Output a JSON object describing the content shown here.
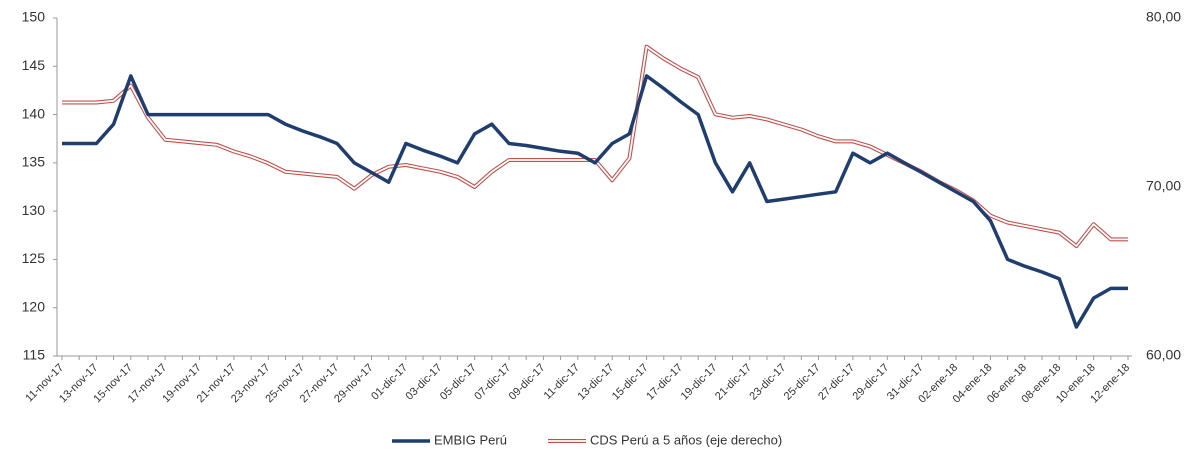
{
  "chart_data": {
    "type": "line",
    "categories": [
      "11-nov-17",
      null,
      "13-nov-17",
      null,
      "15-nov-17",
      null,
      "17-nov-17",
      null,
      "19-nov-17",
      null,
      "21-nov-17",
      null,
      "23-nov-17",
      null,
      "25-nov-17",
      null,
      "27-nov-17",
      null,
      "29-nov-17",
      null,
      "01-dic-17",
      null,
      "03-dic-17",
      null,
      "05-dic-17",
      null,
      "07-dic-17",
      null,
      "09-dic-17",
      null,
      "11-dic-17",
      null,
      "13-dic-17",
      null,
      "15-dic-17",
      null,
      "17-dic-17",
      null,
      "19-dic-17",
      null,
      "21-dic-17",
      null,
      "23-dic-17",
      null,
      "25-dic-17",
      null,
      "27-dic-17",
      null,
      "29-dic-17",
      null,
      "31-dic-17",
      null,
      "02-ene-18",
      null,
      "04-ene-18",
      null,
      "06-ene-18",
      null,
      "08-ene-18",
      null,
      "10-ene-18",
      null,
      "12-ene-18"
    ],
    "series": [
      {
        "name": "EMBIG Perú",
        "color": "#1f3d6e",
        "axis": "y",
        "values": [
          137,
          137,
          137,
          139,
          144,
          140,
          140,
          140,
          140,
          140,
          140,
          140,
          140,
          139,
          138.3,
          137.7,
          137,
          135,
          134,
          133,
          137,
          136.3,
          135.7,
          135,
          138,
          139,
          137,
          136.8,
          136.5,
          136.2,
          136,
          135,
          137,
          138,
          144,
          142.7,
          141.3,
          140,
          135,
          132,
          135,
          131,
          131.25,
          131.5,
          131.75,
          132,
          136,
          135,
          136,
          135,
          134,
          133,
          132,
          131,
          129,
          125,
          124.3,
          123.7,
          123,
          118,
          121,
          122,
          122
        ]
      },
      {
        "name": "CDS Perú a 5 años (eje derecho)",
        "color": "#c0504d",
        "axis": "y2",
        "values": [
          75.0,
          75.0,
          75.0,
          75.1,
          76.0,
          74.1,
          72.8,
          72.7,
          72.6,
          72.5,
          72.1,
          71.8,
          71.4,
          70.9,
          70.8,
          70.7,
          70.6,
          69.9,
          70.7,
          71.2,
          71.3,
          71.1,
          70.9,
          70.6,
          70.0,
          70.9,
          71.6,
          71.6,
          71.6,
          71.6,
          71.6,
          71.6,
          70.4,
          71.7,
          78.3,
          77.6,
          77.0,
          76.5,
          74.3,
          74.1,
          74.2,
          74.0,
          73.7,
          73.4,
          73.0,
          72.7,
          72.7,
          72.4,
          71.9,
          71.4,
          70.9,
          70.3,
          69.8,
          69.2,
          68.3,
          67.9,
          67.7,
          67.5,
          67.3,
          66.5,
          67.8,
          66.9,
          66.9
        ]
      }
    ],
    "ylim": [
      115,
      150
    ],
    "yticks": [
      115,
      120,
      125,
      130,
      135,
      140,
      145,
      150
    ],
    "y2lim": [
      60,
      80
    ],
    "y2ticks": [
      {
        "value": 60,
        "label": "60,00"
      },
      {
        "value": 70,
        "label": "70,00"
      },
      {
        "value": 80,
        "label": "80,00"
      }
    ],
    "legend": "bottom"
  }
}
